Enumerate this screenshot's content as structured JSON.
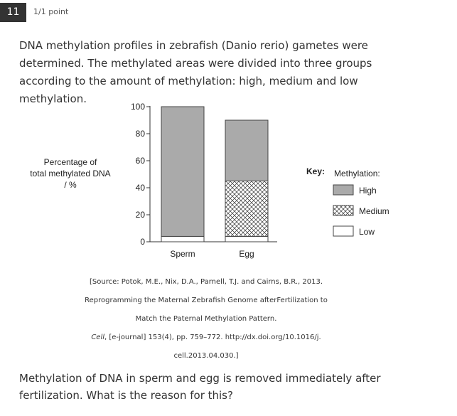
{
  "question": {
    "number": "11",
    "points": "1/1 point",
    "intro": "DNA methylation profiles in zebrafish (Danio rerio) gametes were determined. The methylated areas were divided into three groups according to the amount of methylation: high, medium and low methylation.",
    "prompt": "Methylation of DNA in sperm and egg is removed immediately after fertilization. What is the reason for this?"
  },
  "source": {
    "line1": "[Source: Potok, M.E., Nix, D.A., Parnell, T.J. and Cairns, B.R., 2013.",
    "line2": "Reprogramming the Maternal Zebrafish Genome afterFertilization to",
    "line3": "Match the Paternal Methylation Pattern.",
    "line4_journal": "Cell",
    "line4_rest": ", [e-journal] 153(4), pp. 759–772. http://dx.doi.org/10.1016/j.",
    "line5": "cell.2013.04.030.]"
  },
  "chart_data": {
    "type": "bar",
    "stacked": true,
    "categories": [
      "Sperm",
      "Egg"
    ],
    "series": [
      {
        "name": "Low",
        "values": [
          4,
          4
        ],
        "color": "#ffffff",
        "pattern": "none"
      },
      {
        "name": "Medium",
        "values": [
          0,
          41
        ],
        "color": "#ffffff",
        "pattern": "crosshatch"
      },
      {
        "name": "High",
        "values": [
          96,
          45
        ],
        "color": "#aaaaaa",
        "pattern": "none"
      }
    ],
    "ylabel_lines": [
      "Percentage of",
      "total methylated DNA",
      "/ %"
    ],
    "ylim": [
      0,
      100
    ],
    "yticks": [
      "0",
      "20",
      "40",
      "60",
      "80",
      "100"
    ],
    "legend": {
      "key_label": "Key:",
      "title": "Methylation:",
      "items": [
        "High",
        "Medium",
        "Low"
      ],
      "position": "right"
    }
  }
}
